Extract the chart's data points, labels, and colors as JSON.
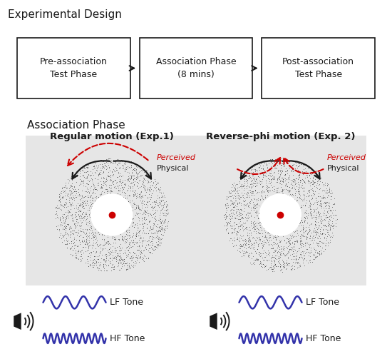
{
  "title_top": "Experimental Design",
  "box1_text": "Pre-association\nTest Phase",
  "box2_text": "Association Phase\n(8 mins)",
  "box3_text": "Post-association\nTest Phase",
  "section2_title": "Association Phase",
  "left_title": "Regular motion (Exp.1)",
  "right_title": "Reverse-phi motion (Exp. 2)",
  "perceived_label": "Perceived",
  "physical_label": "Physical",
  "lf_tone": "LF Tone",
  "hf_tone": "HF Tone",
  "bg_color": "#e6e6e6",
  "white": "#ffffff",
  "black": "#1a1a1a",
  "red": "#cc0000",
  "blue_wave": "#3333aa",
  "dot_color": "#1a1a1a",
  "n_dots": 2000,
  "dot_size": 0.8
}
